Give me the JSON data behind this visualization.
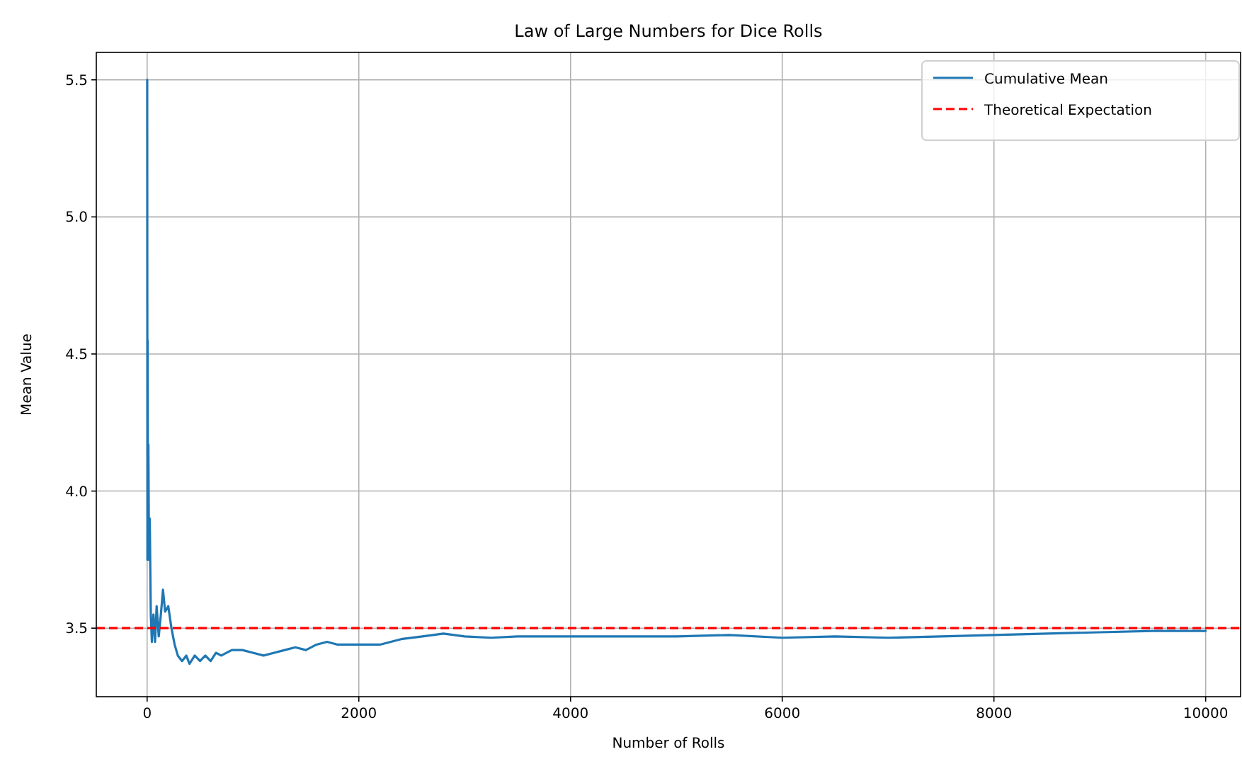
{
  "chart_data": {
    "type": "line",
    "title": "Law of Large Numbers for Dice Rolls",
    "xlabel": "Number of Rolls",
    "ylabel": "Mean Value",
    "xlim": [
      -480,
      10330
    ],
    "xticks": [
      0,
      2000,
      4000,
      6000,
      8000,
      10000
    ],
    "ylim": [
      3.25,
      5.6
    ],
    "yticks": [
      3.5,
      {
        "value": 4,
        "label": "4.0"
      },
      4.5,
      {
        "value": 5,
        "label": "5.0"
      },
      5.5
    ],
    "grid": true,
    "legend": "top right",
    "marker": "none",
    "line_style": "solid",
    "series": [
      {
        "name": "Cumulative Mean",
        "color": "#1f77b4",
        "x": [
          1,
          3,
          5,
          8,
          12,
          18,
          25,
          35,
          45,
          60,
          75,
          90,
          110,
          130,
          150,
          170,
          200,
          230,
          260,
          290,
          330,
          370,
          400,
          450,
          500,
          550,
          600,
          650,
          700,
          800,
          900,
          1000,
          1100,
          1200,
          1300,
          1400,
          1500,
          1600,
          1700,
          1800,
          2000,
          2200,
          2400,
          2600,
          2800,
          3000,
          3250,
          3500,
          4000,
          4500,
          5000,
          5500,
          6000,
          6500,
          7000,
          7500,
          8000,
          8500,
          9000,
          9500,
          10000
        ],
        "values": [
          5.5,
          3.75,
          4.55,
          3.9,
          4.17,
          3.75,
          3.9,
          3.55,
          3.45,
          3.55,
          3.45,
          3.58,
          3.47,
          3.55,
          3.64,
          3.56,
          3.58,
          3.5,
          3.44,
          3.4,
          3.38,
          3.4,
          3.37,
          3.4,
          3.38,
          3.4,
          3.38,
          3.41,
          3.4,
          3.42,
          3.42,
          3.41,
          3.4,
          3.41,
          3.42,
          3.43,
          3.42,
          3.44,
          3.45,
          3.44,
          3.44,
          3.44,
          3.46,
          3.47,
          3.48,
          3.47,
          3.465,
          3.47,
          3.47,
          3.47,
          3.47,
          3.475,
          3.465,
          3.47,
          3.465,
          3.47,
          3.475,
          3.48,
          3.485,
          3.49,
          3.49
        ]
      }
    ],
    "ref_lines": [
      {
        "axis": "y",
        "value": 3.5,
        "label": "Theoretical Expectation",
        "color": "#ff0000",
        "line_style": "dashed"
      }
    ]
  }
}
